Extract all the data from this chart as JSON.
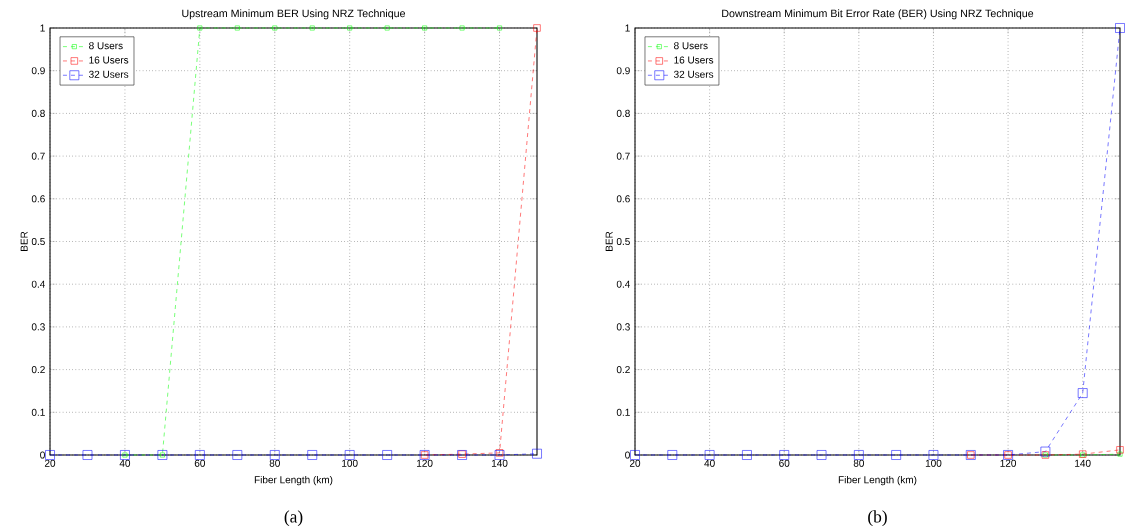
{
  "chart_data": [
    {
      "type": "line",
      "title": "Upstream Minimum BER Using NRZ Technique",
      "xlabel": "Fiber Length (km)",
      "ylabel": "BER",
      "xlim": [
        20,
        150
      ],
      "ylim": [
        0,
        1
      ],
      "xticks": [
        20,
        40,
        60,
        80,
        100,
        120,
        140
      ],
      "yticks": [
        0,
        0.1,
        0.2,
        0.3,
        0.4,
        0.5,
        0.6,
        0.7,
        0.8,
        0.9,
        1
      ],
      "grid": true,
      "legend": "top left",
      "marker": "square",
      "line_style": "dashed",
      "annotations": [
        "(a)"
      ],
      "series": [
        {
          "name": "8 Users",
          "color": "#00ff00",
          "x": [
            40,
            50,
            60,
            70,
            80,
            90,
            100,
            110,
            120,
            130,
            140
          ],
          "values": [
            0,
            0,
            1,
            1,
            1,
            1,
            1,
            1,
            1,
            1,
            1
          ]
        },
        {
          "name": "16 Users",
          "color": "#ff0000",
          "x": [
            120,
            130,
            140,
            150
          ],
          "values": [
            0,
            0.002,
            0.005,
            1
          ]
        },
        {
          "name": "32 Users",
          "color": "#0000ff",
          "x": [
            20,
            30,
            40,
            50,
            60,
            70,
            80,
            90,
            100,
            110,
            120,
            130,
            140,
            150
          ],
          "values": [
            0,
            0,
            0,
            0,
            0,
            0,
            0,
            0,
            0,
            0,
            0,
            0,
            0,
            0.003
          ]
        }
      ]
    },
    {
      "type": "line",
      "title": "Downstream Minimum Bit Error Rate (BER) Using NRZ Technique",
      "xlabel": "Fiber Length (km)",
      "ylabel": "BER",
      "xlim": [
        20,
        150
      ],
      "ylim": [
        0,
        1
      ],
      "xticks": [
        20,
        40,
        60,
        80,
        100,
        120,
        140
      ],
      "yticks": [
        0,
        0.1,
        0.2,
        0.3,
        0.4,
        0.5,
        0.6,
        0.7,
        0.8,
        0.9,
        1
      ],
      "grid": true,
      "legend": "top left",
      "marker": "square",
      "line_style": "dashed",
      "annotations": [
        "(b)"
      ],
      "series": [
        {
          "name": "8 Users",
          "color": "#00ff00",
          "x": [
            130,
            140,
            150
          ],
          "values": [
            0,
            0,
            0.002
          ]
        },
        {
          "name": "16 Users",
          "color": "#ff0000",
          "x": [
            110,
            120,
            130,
            140,
            150
          ],
          "values": [
            0,
            0,
            0,
            0.002,
            0.012
          ]
        },
        {
          "name": "32 Users",
          "color": "#0000ff",
          "x": [
            20,
            30,
            40,
            50,
            60,
            70,
            80,
            90,
            100,
            110,
            120,
            130,
            140,
            150
          ],
          "values": [
            0,
            0,
            0,
            0,
            0,
            0,
            0,
            0,
            0,
            0,
            0,
            0.008,
            0.145,
            1
          ]
        }
      ]
    }
  ]
}
